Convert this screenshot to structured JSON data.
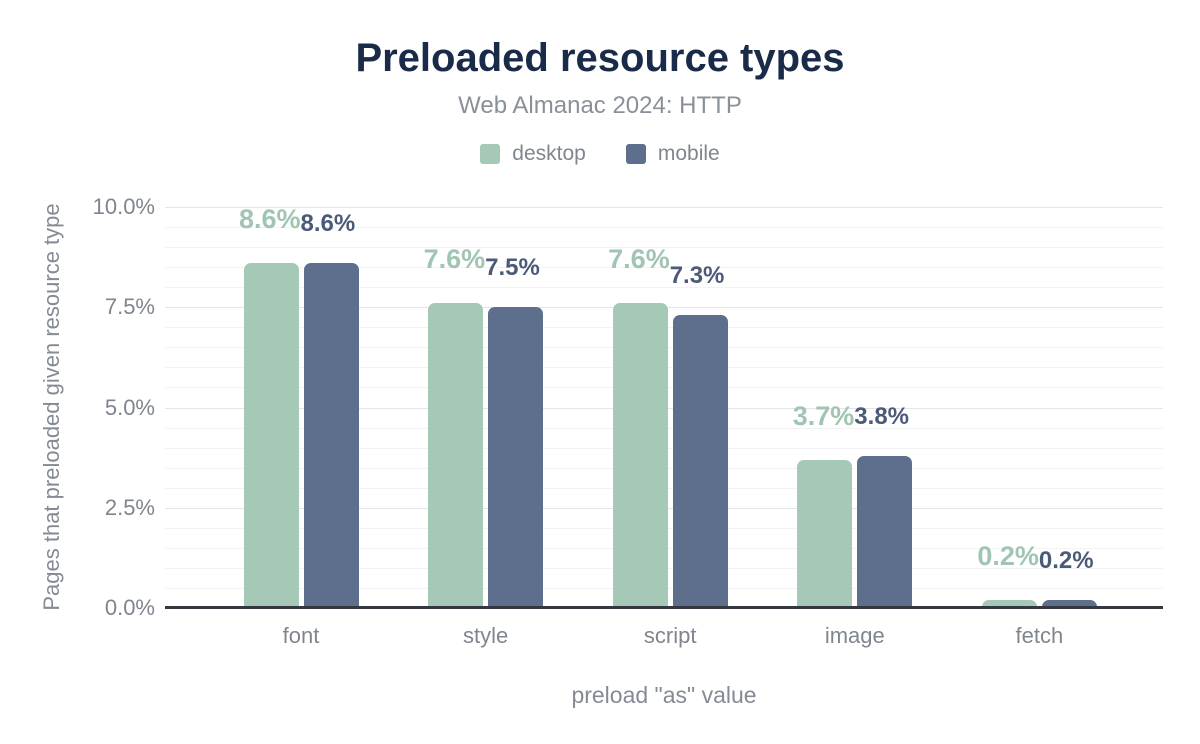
{
  "header": {
    "title": "Preloaded resource types",
    "subtitle": "Web Almanac 2024: HTTP"
  },
  "colors": {
    "title_navy": "#1a2b49",
    "text_gray": "#848b94",
    "desktop_green": "#a6c9b7",
    "mobile_slate": "#5e6f8d",
    "desktop_label_green": "#a0c5b2",
    "mobile_label_navy": "#4b5a78",
    "axis_line": "#33373f",
    "grid_major": "#e4e5e9",
    "grid_minor": "#f3f3f6"
  },
  "chart_data": {
    "type": "bar",
    "title": "Preloaded resource types",
    "subtitle": "Web Almanac 2024: HTTP",
    "categories": [
      "font",
      "style",
      "script",
      "image",
      "fetch"
    ],
    "series": [
      {
        "name": "desktop",
        "color": "#a6c9b7",
        "label_color": "#a0c5b2",
        "values": [
          8.6,
          7.6,
          7.6,
          3.7,
          0.2
        ],
        "labels": [
          "8.6%",
          "7.6%",
          "7.6%",
          "3.7%",
          "0.2%"
        ]
      },
      {
        "name": "mobile",
        "color": "#5e6f8d",
        "label_color": "#4b5a78",
        "values": [
          8.6,
          7.5,
          7.3,
          3.8,
          0.2
        ],
        "labels": [
          "8.6%",
          "7.5%",
          "7.3%",
          "3.8%",
          "0.2%"
        ]
      }
    ],
    "xlabel": "preload \"as\" value",
    "ylabel": "Pages that preloaded given resource type",
    "ylim": [
      0,
      10
    ],
    "y_ticks": [
      "0.0%",
      "2.5%",
      "5.0%",
      "7.5%",
      "10.0%"
    ],
    "y_tick_values": [
      0,
      2.5,
      5,
      7.5,
      10
    ],
    "y_minor_step": 0.5,
    "grid": true,
    "legend_position": "top"
  }
}
